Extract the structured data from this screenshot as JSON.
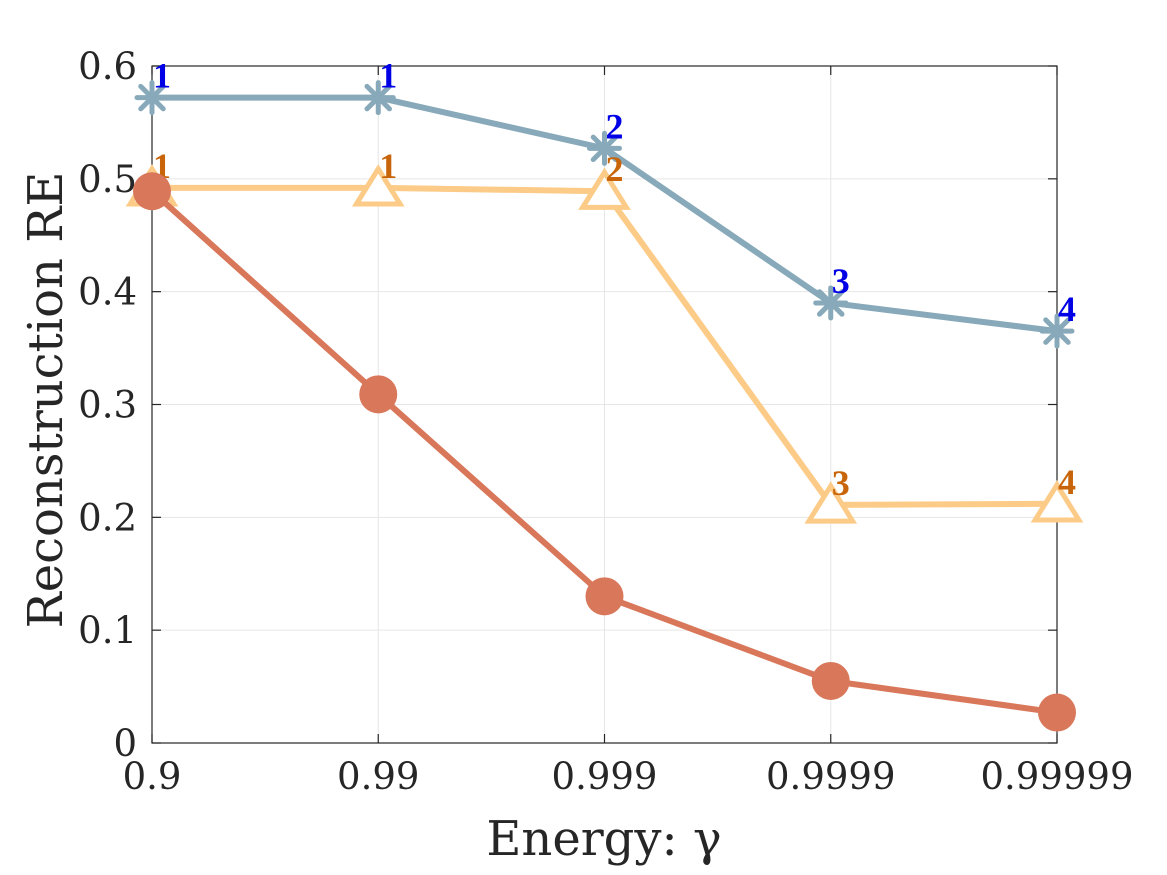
{
  "chart_data": {
    "type": "line",
    "xlabel": "Energy: γ",
    "ylabel": "Reconstruction RE",
    "categories": [
      "0.9",
      "0.99",
      "0.999",
      "0.9999",
      "0.99999"
    ],
    "ylim": [
      0,
      0.6
    ],
    "yticks": [
      "0",
      "0.1",
      "0.2",
      "0.3",
      "0.4",
      "0.5",
      "0.6"
    ],
    "grid": true,
    "series": [
      {
        "name": "asterisk-series",
        "marker": "asterisk",
        "color": "#87A9B9",
        "label_color": "#0000E6",
        "values": [
          0.572,
          0.572,
          0.527,
          0.39,
          0.365
        ],
        "annotations": [
          "1",
          "1",
          "2",
          "3",
          "4"
        ]
      },
      {
        "name": "triangle-series",
        "marker": "triangle",
        "color": "#FCCB87",
        "label_color": "#C8650A",
        "values": [
          0.492,
          0.492,
          0.489,
          0.211,
          0.212
        ],
        "annotations": [
          "1",
          "1",
          "2",
          "3",
          "4"
        ]
      },
      {
        "name": "circle-series",
        "marker": "circle",
        "color": "#D9775A",
        "values": [
          0.489,
          0.309,
          0.13,
          0.055,
          0.027
        ]
      }
    ]
  }
}
